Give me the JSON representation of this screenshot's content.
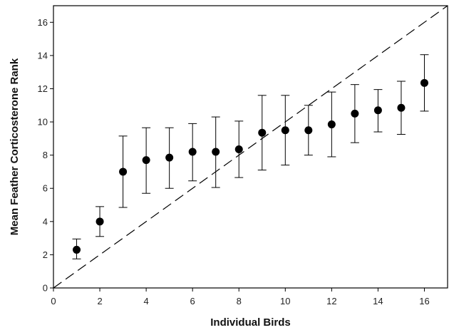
{
  "chart_data": {
    "type": "scatter",
    "title": "",
    "xlabel": "Individual Birds",
    "ylabel": "Mean Feather Corticosterone Rank",
    "xlim": [
      0,
      17
    ],
    "ylim": [
      0,
      17
    ],
    "x_ticks": [
      0,
      2,
      4,
      6,
      8,
      10,
      12,
      14,
      16
    ],
    "y_ticks": [
      0,
      2,
      4,
      6,
      8,
      10,
      12,
      14,
      16
    ],
    "grid": false,
    "reference_line": {
      "style": "dashed",
      "from": [
        0,
        0
      ],
      "to": [
        17,
        17
      ]
    },
    "series": [
      {
        "marker": "filled-circle",
        "color": "#000000",
        "points": [
          {
            "x": 1,
            "y": 2.3,
            "err_low": 1.75,
            "err_high": 2.95
          },
          {
            "x": 2,
            "y": 4.0,
            "err_low": 3.1,
            "err_high": 4.9
          },
          {
            "x": 3,
            "y": 7.0,
            "err_low": 4.85,
            "err_high": 9.15
          },
          {
            "x": 4,
            "y": 7.7,
            "err_low": 5.7,
            "err_high": 9.65
          },
          {
            "x": 5,
            "y": 7.85,
            "err_low": 6.0,
            "err_high": 9.65
          },
          {
            "x": 6,
            "y": 8.2,
            "err_low": 6.45,
            "err_high": 9.9
          },
          {
            "x": 7,
            "y": 8.2,
            "err_low": 6.05,
            "err_high": 10.3
          },
          {
            "x": 8,
            "y": 8.35,
            "err_low": 6.65,
            "err_high": 10.05
          },
          {
            "x": 9,
            "y": 9.35,
            "err_low": 7.1,
            "err_high": 11.6
          },
          {
            "x": 10,
            "y": 9.5,
            "err_low": 7.4,
            "err_high": 11.6
          },
          {
            "x": 11,
            "y": 9.5,
            "err_low": 8.0,
            "err_high": 11.0
          },
          {
            "x": 12,
            "y": 9.85,
            "err_low": 7.9,
            "err_high": 11.8
          },
          {
            "x": 13,
            "y": 10.5,
            "err_low": 8.75,
            "err_high": 12.25
          },
          {
            "x": 14,
            "y": 10.7,
            "err_low": 9.4,
            "err_high": 11.95
          },
          {
            "x": 15,
            "y": 10.85,
            "err_low": 9.25,
            "err_high": 12.45
          },
          {
            "x": 16,
            "y": 12.35,
            "err_low": 10.65,
            "err_high": 14.05
          }
        ]
      }
    ]
  }
}
